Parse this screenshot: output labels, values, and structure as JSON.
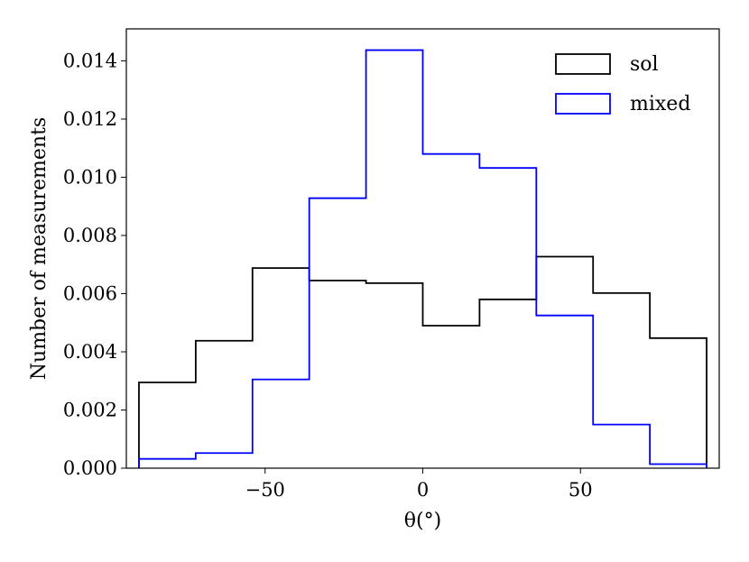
{
  "chart_data": {
    "type": "histogram",
    "xlabel": "θ(°)",
    "ylabel": "Number of measurements",
    "xlim": [
      -94,
      94
    ],
    "ylim": [
      0,
      0.0151
    ],
    "xticks": [
      {
        "value": -50,
        "label": "−50"
      },
      {
        "value": 0,
        "label": "0"
      },
      {
        "value": 50,
        "label": "50"
      }
    ],
    "yticks": [
      {
        "value": 0.0,
        "label": "0.000"
      },
      {
        "value": 0.002,
        "label": "0.002"
      },
      {
        "value": 0.004,
        "label": "0.004"
      },
      {
        "value": 0.006,
        "label": "0.006"
      },
      {
        "value": 0.008,
        "label": "0.008"
      },
      {
        "value": 0.01,
        "label": "0.010"
      },
      {
        "value": 0.012,
        "label": "0.012"
      },
      {
        "value": 0.014,
        "label": "0.014"
      }
    ],
    "bin_edges": [
      -90,
      -72,
      -54,
      -36,
      -18,
      0,
      18,
      36,
      54,
      72,
      90
    ],
    "series": [
      {
        "name": "sol",
        "color": "#000000",
        "values": [
          0.00295,
          0.00438,
          0.00688,
          0.00645,
          0.00636,
          0.0049,
          0.0058,
          0.00727,
          0.00602,
          0.00447
        ]
      },
      {
        "name": "mixed",
        "color": "#0000ff",
        "values": [
          0.00032,
          0.00052,
          0.00305,
          0.00928,
          0.01437,
          0.0108,
          0.01032,
          0.00525,
          0.0015,
          0.00014
        ]
      }
    ],
    "legend": "top-right",
    "grid": false
  }
}
